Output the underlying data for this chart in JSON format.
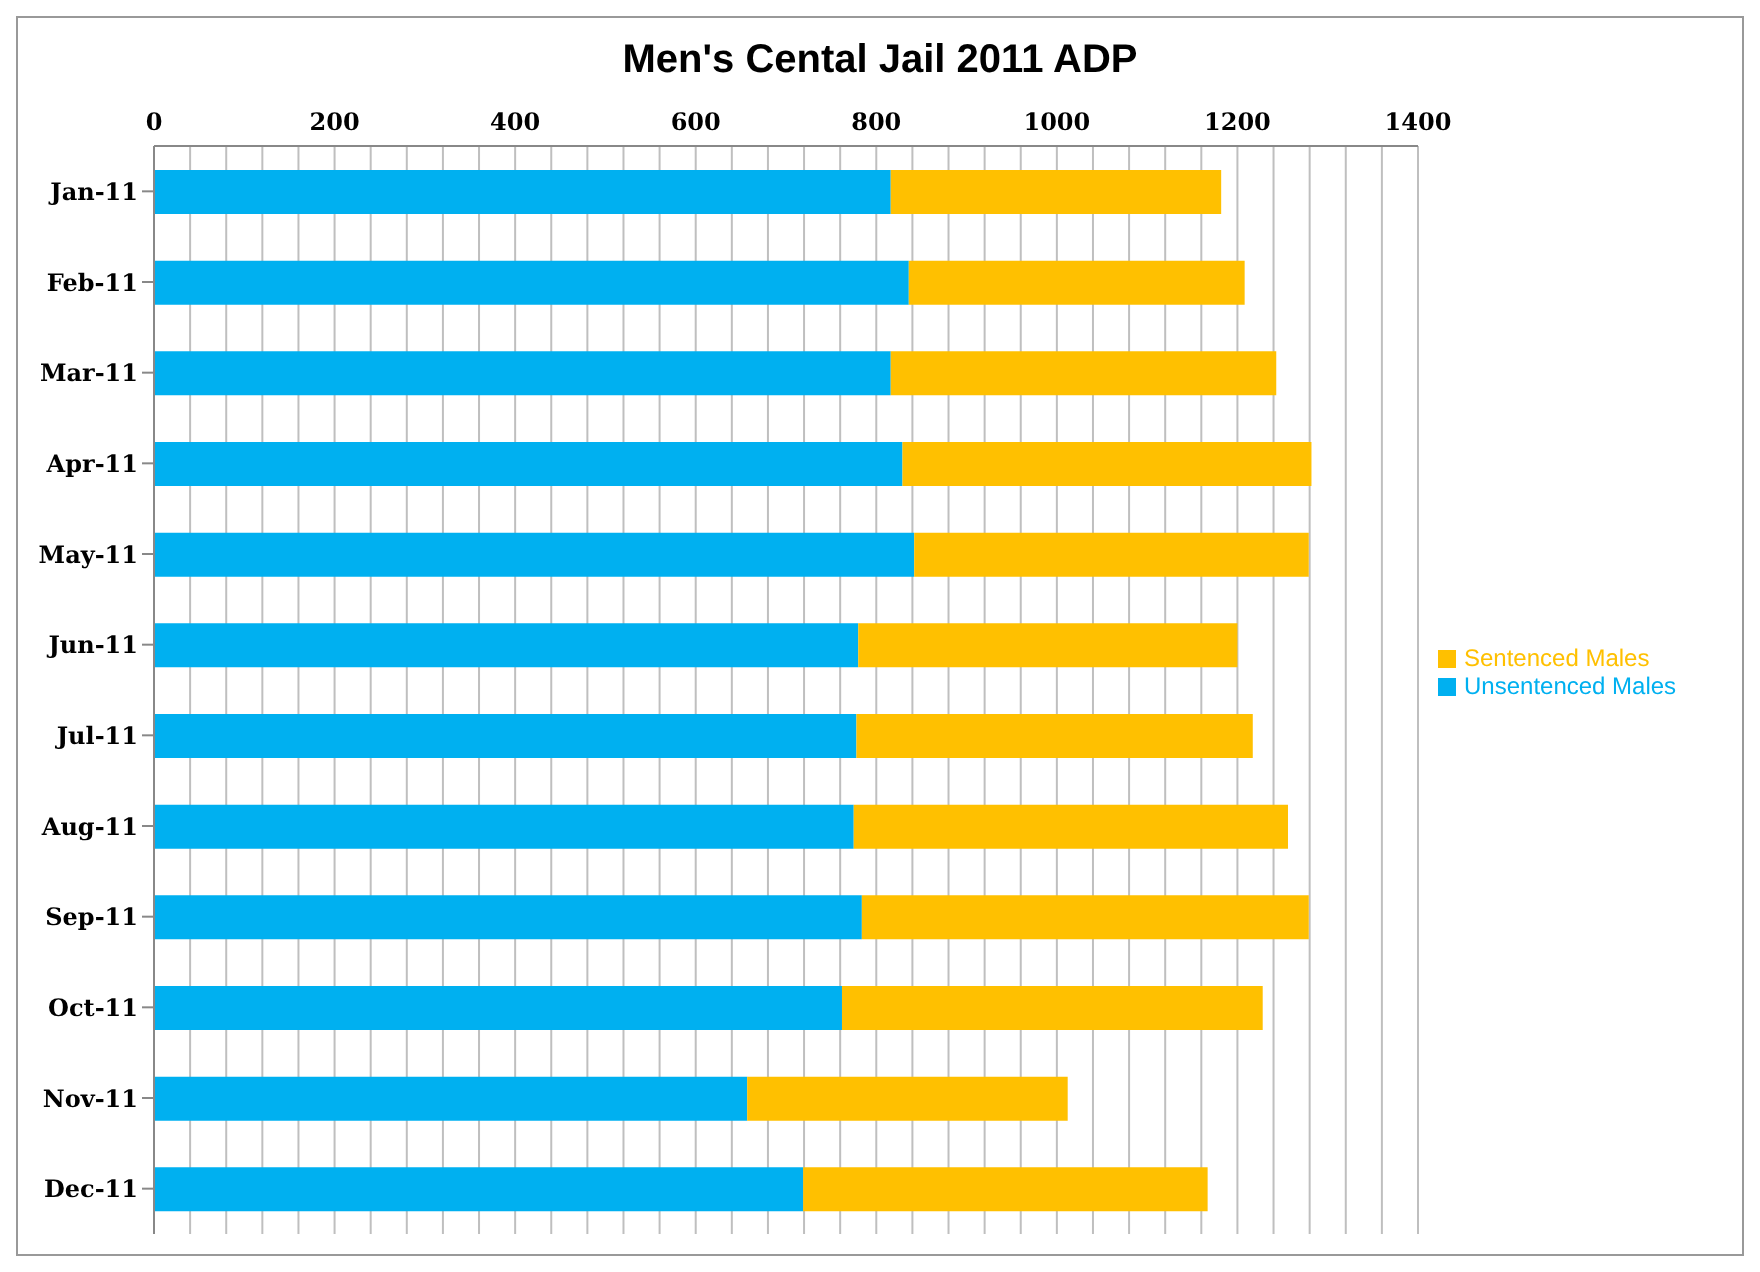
{
  "chart_data": {
    "type": "bar",
    "title": "Men's Cental Jail 2011 ADP",
    "orientation": "horizontal",
    "stacked": true,
    "categories": [
      "Jan-11",
      "Feb-11",
      "Mar-11",
      "Apr-11",
      "May-11",
      "Jun-11",
      "Jul-11",
      "Aug-11",
      "Sep-11",
      "Oct-11",
      "Nov-11",
      "Dec-11"
    ],
    "series": [
      {
        "name": "Unsentenced Males",
        "color": "#00b0f0",
        "values": [
          816,
          836,
          816,
          829,
          842,
          780,
          778,
          775,
          784,
          762,
          657,
          719
        ]
      },
      {
        "name": "Sentenced Males",
        "color": "#ffc000",
        "values": [
          366,
          372,
          427,
          453,
          437,
          420,
          439,
          481,
          495,
          466,
          355,
          448
        ]
      }
    ],
    "xlim": [
      0,
      1400
    ],
    "xticks": [
      0,
      {
        "value": 40,
        "label": null
      },
      {
        "value": 80,
        "label": null
      },
      {
        "value": 120,
        "label": null
      },
      {
        "value": 160,
        "label": null
      },
      200,
      {
        "value": 240,
        "label": null
      },
      {
        "value": 280,
        "label": null
      },
      {
        "value": 320,
        "label": null
      },
      {
        "value": 360,
        "label": null
      },
      400,
      {
        "value": 440,
        "label": null
      },
      {
        "value": 480,
        "label": null
      },
      {
        "value": 520,
        "label": null
      },
      {
        "value": 560,
        "label": null
      },
      600,
      {
        "value": 640,
        "label": null
      },
      {
        "value": 680,
        "label": null
      },
      {
        "value": 720,
        "label": null
      },
      {
        "value": 760,
        "label": null
      },
      800,
      {
        "value": 840,
        "label": null
      },
      {
        "value": 880,
        "label": null
      },
      {
        "value": 920,
        "label": null
      },
      {
        "value": 960,
        "label": null
      },
      1000,
      {
        "value": 1040,
        "label": null
      },
      {
        "value": 1080,
        "label": null
      },
      {
        "value": 1120,
        "label": null
      },
      {
        "value": 1160,
        "label": null
      },
      1200,
      {
        "value": 1240,
        "label": null
      },
      {
        "value": 1280,
        "label": null
      },
      {
        "value": 1320,
        "label": null
      },
      {
        "value": 1360,
        "label": null
      },
      1400
    ],
    "grid": "x",
    "legend": "right"
  }
}
